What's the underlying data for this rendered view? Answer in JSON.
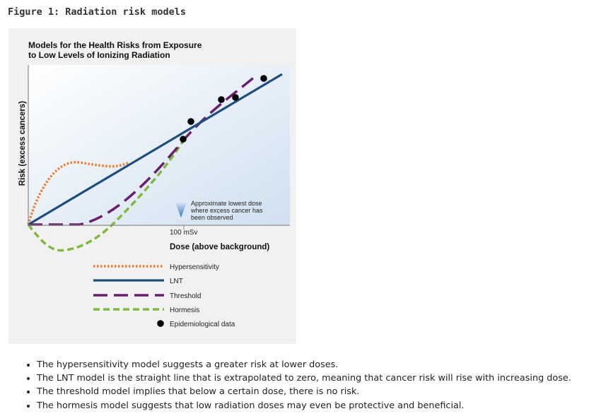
{
  "figure_title": "Figure 1: Radiation risk models",
  "panel_title_lines": [
    "Models for the Health Risks from Exposure",
    "to Low Levels of Ionizing Radiation"
  ],
  "y_axis_label": "Risk (excess cancers)",
  "x_axis_label": "Dose (above background)",
  "x_tick_label": "100 mSv",
  "annotation_lines": [
    "Approximate lowest dose",
    "where excess cancer has",
    "been observed"
  ],
  "legend": [
    {
      "label": "Hypersensitivity",
      "color": "#f07b2b",
      "style": "dotted"
    },
    {
      "label": "LNT",
      "color": "#1d4e80",
      "style": "solid"
    },
    {
      "label": "Threshold",
      "color": "#6b1d6f",
      "style": "dashed"
    },
    {
      "label": "Hormesis",
      "color": "#7fba3a",
      "style": "dashed"
    },
    {
      "label": "Epidemiological data",
      "color": "#000000",
      "style": "dot"
    }
  ],
  "bullets": [
    "The hypersensitivity model suggests a greater risk at lower doses.",
    "The LNT model is the straight line that is extrapolated to zero, meaning that cancer risk will rise with increasing dose.",
    "The threshold model implies that below a certain dose, there is no risk.",
    "The hormesis model suggests that low radiation doses may even be protective and beneficial."
  ]
}
